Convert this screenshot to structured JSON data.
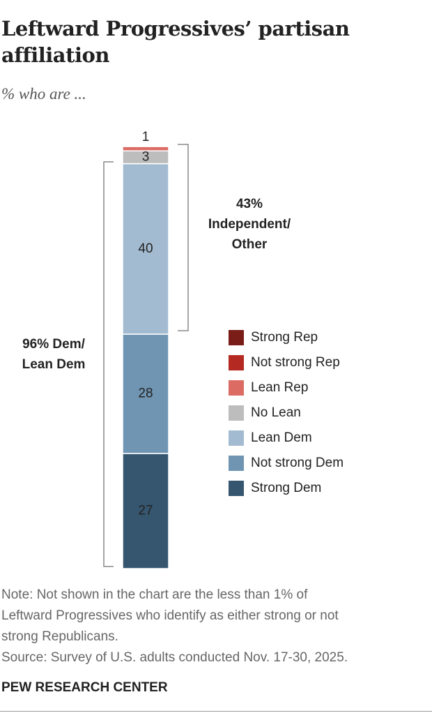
{
  "chart_data": {
    "type": "stacked-bar",
    "title": "Leftward Progressives’ partisan affiliation",
    "subtitle": "% who are ...",
    "series": [
      {
        "name": "Strong Rep",
        "color": "#7a1c18",
        "values": [
          null
        ]
      },
      {
        "name": "Not strong Rep",
        "color": "#b42a22",
        "values": [
          null
        ]
      },
      {
        "name": "Lean Rep",
        "color": "#db6b63",
        "values": [
          1
        ]
      },
      {
        "name": "No Lean",
        "color": "#bdbdbd",
        "values": [
          3
        ]
      },
      {
        "name": "Lean Dem",
        "color": "#a3bbd0",
        "values": [
          40
        ]
      },
      {
        "name": "Not strong Dem",
        "color": "#7095b2",
        "values": [
          28
        ]
      },
      {
        "name": "Strong Dem",
        "color": "#36566f",
        "values": [
          27
        ]
      }
    ],
    "ylim": [
      0,
      100
    ],
    "annotations": [
      {
        "lines": [
          "43%",
          "Independent/",
          "Other"
        ]
      },
      {
        "lines": [
          "96% Dem/",
          "Lean Dem"
        ]
      }
    ],
    "note": [
      "Note: Not shown in the chart are the less than 1% of",
      "Leftward Progressives who identify as either strong or not",
      "strong Republicans."
    ],
    "source": "Source: Survey of U.S. adults conducted Nov. 17-30, 2025.",
    "credit": "PEW RESEARCH CENTER"
  }
}
